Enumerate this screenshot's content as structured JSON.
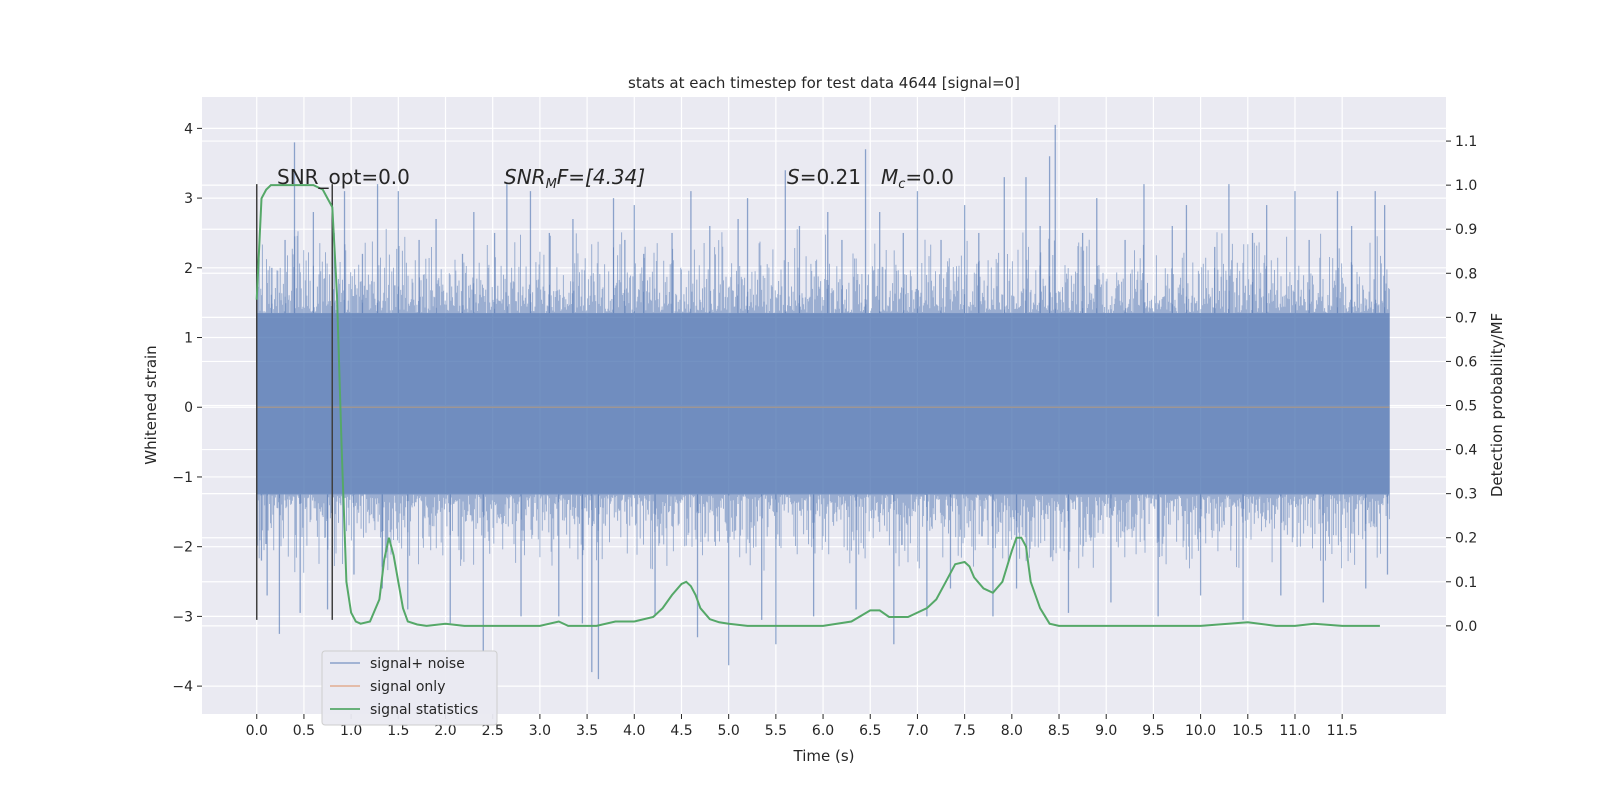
{
  "chart_data": {
    "type": "line",
    "title": "stats at each timestep for test data 4644 [signal=0]",
    "xlabel": "Time (s)",
    "ylabel_left": "Whitened strain",
    "ylabel_right": "Detection probability/MF",
    "xlim": [
      -0.58,
      12.6
    ],
    "ylim_left": [
      -4.4,
      4.45
    ],
    "ylim_right": [
      -0.2,
      1.2
    ],
    "x_ticks": [
      "0.0",
      "0.5",
      "1.0",
      "1.5",
      "2.0",
      "2.5",
      "3.0",
      "3.5",
      "4.0",
      "4.5",
      "5.0",
      "5.5",
      "6.0",
      "6.5",
      "7.0",
      "7.5",
      "8.0",
      "8.5",
      "9.0",
      "9.5",
      "10.0",
      "10.5",
      "11.0",
      "11.5"
    ],
    "y_ticks_left": [
      "−4",
      "−3",
      "−2",
      "−1",
      "0",
      "1",
      "2",
      "3",
      "4"
    ],
    "y_ticks_right": [
      "0.0",
      "0.1",
      "0.2",
      "0.3",
      "0.4",
      "0.5",
      "0.6",
      "0.7",
      "0.8",
      "0.9",
      "1.0",
      "1.1"
    ],
    "grid": true,
    "legend_position": "lower-left",
    "annotations": {
      "snr_opt": "SNR_opt=0.0",
      "snr_mf_main": "SNR",
      "snr_mf_sub": "M",
      "snr_mf_tail": "F=[4.34]",
      "s_main": "S",
      "s_tail": "=0.21",
      "mc_main": "M",
      "mc_sub": "c",
      "mc_tail": "=0.0"
    },
    "series": [
      {
        "name": "signal+ noise",
        "color": "#4c72b0",
        "x_range": [
          0.0,
          12.0
        ],
        "band": [
          -1.25,
          1.35
        ],
        "spikes": [
          {
            "x": 0.0,
            "y": 2.9
          },
          {
            "x": 0.05,
            "y": -2.2
          },
          {
            "x": 0.11,
            "y": -2.7
          },
          {
            "x": 0.16,
            "y": 2.0
          },
          {
            "x": 0.24,
            "y": -3.25
          },
          {
            "x": 0.3,
            "y": 2.4
          },
          {
            "x": 0.4,
            "y": 3.8
          },
          {
            "x": 0.46,
            "y": -2.95
          },
          {
            "x": 0.6,
            "y": 2.8
          },
          {
            "x": 0.75,
            "y": -2.9
          },
          {
            "x": 0.82,
            "y": 2.5
          },
          {
            "x": 0.93,
            "y": 3.1
          },
          {
            "x": 1.03,
            "y": -2.4
          },
          {
            "x": 1.12,
            "y": 2.2
          },
          {
            "x": 1.28,
            "y": 3.2
          },
          {
            "x": 1.33,
            "y": -2.6
          },
          {
            "x": 1.5,
            "y": 3.1
          },
          {
            "x": 1.6,
            "y": -2.9
          },
          {
            "x": 1.72,
            "y": 2.4
          },
          {
            "x": 1.9,
            "y": 2.7
          },
          {
            "x": 2.05,
            "y": -3.1
          },
          {
            "x": 2.18,
            "y": 2.2
          },
          {
            "x": 2.3,
            "y": 2.8
          },
          {
            "x": 2.4,
            "y": -3.5
          },
          {
            "x": 2.52,
            "y": 2.5
          },
          {
            "x": 2.65,
            "y": 3.2
          },
          {
            "x": 2.8,
            "y": -3.0
          },
          {
            "x": 2.9,
            "y": 3.1
          },
          {
            "x": 3.1,
            "y": 2.5
          },
          {
            "x": 3.2,
            "y": -3.0
          },
          {
            "x": 3.35,
            "y": 2.7
          },
          {
            "x": 3.45,
            "y": -3.1
          },
          {
            "x": 3.55,
            "y": -3.8
          },
          {
            "x": 3.62,
            "y": -3.9
          },
          {
            "x": 3.78,
            "y": 3.0
          },
          {
            "x": 3.9,
            "y": 2.4
          },
          {
            "x": 4.0,
            "y": 2.9
          },
          {
            "x": 4.1,
            "y": 2.2
          },
          {
            "x": 4.22,
            "y": -3.0
          },
          {
            "x": 4.4,
            "y": 2.5
          },
          {
            "x": 4.6,
            "y": 3.1
          },
          {
            "x": 4.67,
            "y": -3.3
          },
          {
            "x": 4.8,
            "y": 2.6
          },
          {
            "x": 5.0,
            "y": -3.7
          },
          {
            "x": 5.1,
            "y": 2.7
          },
          {
            "x": 5.2,
            "y": 3.0
          },
          {
            "x": 5.35,
            "y": -3.05
          },
          {
            "x": 5.5,
            "y": -3.4
          },
          {
            "x": 5.6,
            "y": 3.4
          },
          {
            "x": 5.75,
            "y": 2.6
          },
          {
            "x": 5.9,
            "y": -3.0
          },
          {
            "x": 6.05,
            "y": 2.8
          },
          {
            "x": 6.2,
            "y": 2.4
          },
          {
            "x": 6.35,
            "y": -2.9
          },
          {
            "x": 6.45,
            "y": 3.7
          },
          {
            "x": 6.6,
            "y": 2.8
          },
          {
            "x": 6.75,
            "y": -3.4
          },
          {
            "x": 6.85,
            "y": 2.5
          },
          {
            "x": 7.0,
            "y": 3.1
          },
          {
            "x": 7.1,
            "y": -3.0
          },
          {
            "x": 7.25,
            "y": 2.4
          },
          {
            "x": 7.35,
            "y": -2.6
          },
          {
            "x": 7.5,
            "y": 2.9
          },
          {
            "x": 7.65,
            "y": 2.5
          },
          {
            "x": 7.8,
            "y": -3.0
          },
          {
            "x": 7.92,
            "y": 3.3
          },
          {
            "x": 8.05,
            "y": -2.6
          },
          {
            "x": 8.15,
            "y": 3.3
          },
          {
            "x": 8.3,
            "y": 2.6
          },
          {
            "x": 8.4,
            "y": 3.6
          },
          {
            "x": 8.46,
            "y": 4.05
          },
          {
            "x": 8.6,
            "y": -2.95
          },
          {
            "x": 8.75,
            "y": 2.5
          },
          {
            "x": 8.9,
            "y": 3.0
          },
          {
            "x": 9.05,
            "y": -2.8
          },
          {
            "x": 9.2,
            "y": 2.4
          },
          {
            "x": 9.4,
            "y": 3.2
          },
          {
            "x": 9.55,
            "y": -3.0
          },
          {
            "x": 9.7,
            "y": 2.6
          },
          {
            "x": 9.85,
            "y": 2.9
          },
          {
            "x": 10.0,
            "y": -2.7
          },
          {
            "x": 10.15,
            "y": 2.3
          },
          {
            "x": 10.3,
            "y": 3.2
          },
          {
            "x": 10.45,
            "y": -3.05
          },
          {
            "x": 10.55,
            "y": 2.5
          },
          {
            "x": 10.7,
            "y": 2.9
          },
          {
            "x": 10.85,
            "y": -2.7
          },
          {
            "x": 11.0,
            "y": 3.1
          },
          {
            "x": 11.15,
            "y": 2.4
          },
          {
            "x": 11.3,
            "y": -2.8
          },
          {
            "x": 11.45,
            "y": 3.1
          },
          {
            "x": 11.6,
            "y": 2.6
          },
          {
            "x": 11.75,
            "y": -2.6
          },
          {
            "x": 11.85,
            "y": 3.1
          },
          {
            "x": 11.95,
            "y": 2.9
          },
          {
            "x": 11.98,
            "y": -2.4
          }
        ]
      },
      {
        "name": "signal only",
        "color": "#dd8452",
        "x_range": [
          0.0,
          12.0
        ],
        "y_const": 0.0
      },
      {
        "name": "signal statistics",
        "color": "#55a868",
        "x": [
          0.0,
          0.05,
          0.1,
          0.15,
          0.2,
          0.3,
          0.4,
          0.5,
          0.6,
          0.7,
          0.75,
          0.8,
          0.85,
          0.9,
          0.95,
          1.0,
          1.05,
          1.1,
          1.2,
          1.3,
          1.35,
          1.4,
          1.45,
          1.5,
          1.55,
          1.6,
          1.7,
          1.8,
          2.0,
          2.2,
          2.5,
          3.0,
          3.2,
          3.3,
          3.4,
          3.6,
          3.8,
          4.0,
          4.2,
          4.3,
          4.4,
          4.5,
          4.55,
          4.6,
          4.65,
          4.7,
          4.8,
          4.9,
          5.0,
          5.2,
          5.5,
          6.0,
          6.3,
          6.5,
          6.6,
          6.7,
          6.8,
          6.9,
          7.1,
          7.2,
          7.3,
          7.4,
          7.5,
          7.55,
          7.6,
          7.7,
          7.8,
          7.9,
          8.0,
          8.05,
          8.1,
          8.15,
          8.2,
          8.3,
          8.4,
          8.5,
          8.6,
          9.0,
          10.0,
          10.5,
          10.8,
          11.0,
          11.2,
          11.5,
          11.9
        ],
        "y": [
          0.74,
          0.97,
          0.99,
          1.0,
          1.0,
          1.0,
          1.0,
          1.0,
          1.0,
          0.99,
          0.97,
          0.95,
          0.75,
          0.4,
          0.1,
          0.03,
          0.01,
          0.005,
          0.01,
          0.06,
          0.15,
          0.2,
          0.16,
          0.1,
          0.04,
          0.01,
          0.003,
          0.0,
          0.005,
          0.0,
          0.0,
          0.0,
          0.01,
          0.0,
          0.0,
          0.0,
          0.01,
          0.01,
          0.02,
          0.04,
          0.07,
          0.095,
          0.1,
          0.09,
          0.07,
          0.04,
          0.015,
          0.008,
          0.005,
          0.0,
          0.0,
          0.0,
          0.01,
          0.035,
          0.035,
          0.02,
          0.02,
          0.02,
          0.04,
          0.06,
          0.1,
          0.14,
          0.145,
          0.135,
          0.11,
          0.085,
          0.075,
          0.1,
          0.17,
          0.2,
          0.2,
          0.18,
          0.1,
          0.04,
          0.005,
          0.0,
          0.0,
          0.0,
          0.0,
          0.008,
          0.0,
          0.0,
          0.005,
          0.0,
          0.0
        ]
      }
    ],
    "markers": [
      {
        "x": 0.0,
        "y_from": -3.05,
        "y_to": 3.2,
        "color": "#404040"
      },
      {
        "x": 0.8,
        "y_from": -3.05,
        "y_to": 3.2,
        "color": "#404040"
      }
    ]
  }
}
